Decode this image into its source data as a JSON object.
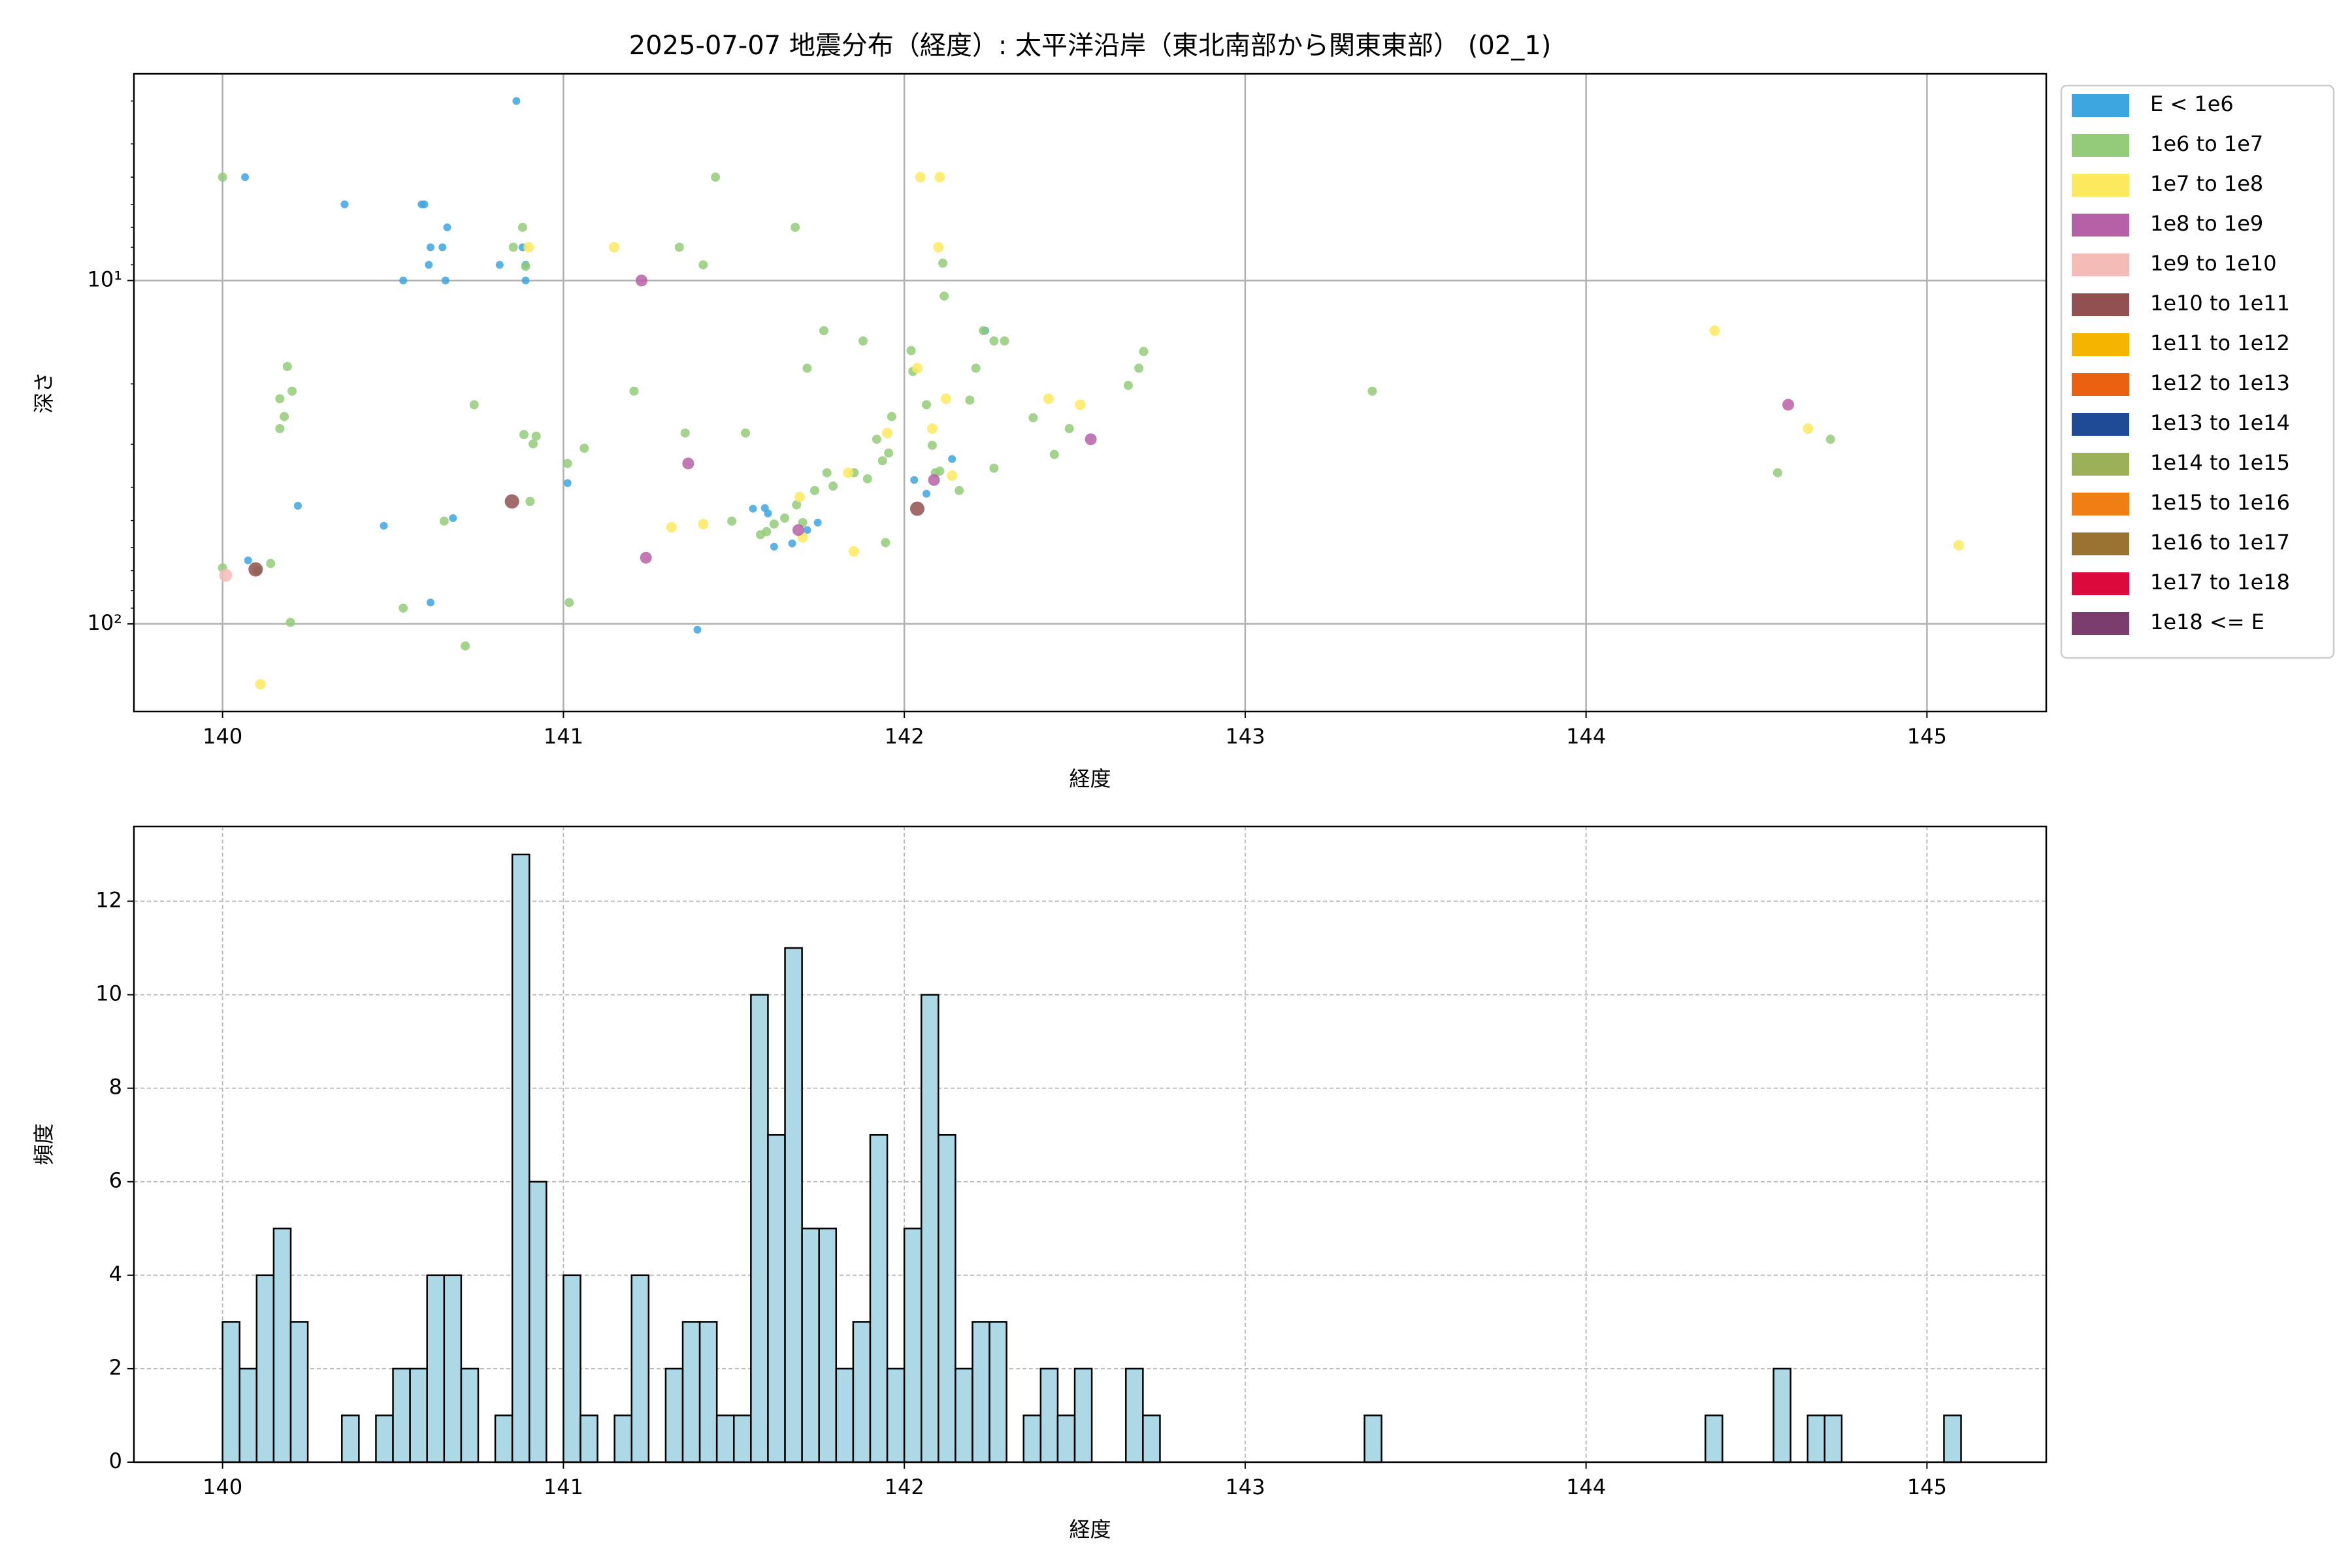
{
  "chart_data": [
    {
      "type": "scatter",
      "title": "2025-07-07 地震分布（経度）: 太平洋沿岸（東北南部から関東東部） (02_1)",
      "xlabel": "経度",
      "ylabel": "深さ",
      "xlim": [
        139.74,
        145.35
      ],
      "xticks": [
        140,
        141,
        142,
        143,
        144,
        145
      ],
      "ylim": [
        2.5,
        180
      ],
      "log_y": true,
      "y_inverted": true,
      "yticks": [
        {
          "value": 10,
          "label": "10¹"
        },
        {
          "value": 100,
          "label": "10²"
        }
      ],
      "grid": true,
      "legend": "outside upper right",
      "series": [
        {
          "name": "E < 1e6",
          "color": "#3da5e0",
          "x": [
            140.862,
            140.066,
            140.358,
            140.584,
            140.592,
            140.659,
            140.61,
            140.645,
            140.605,
            140.813,
            140.88,
            140.889,
            140.889,
            140.53,
            140.654,
            141.012,
            140.676,
            140.473,
            140.075,
            140.221,
            140.61,
            141.393,
            141.556,
            141.591,
            141.6,
            141.618,
            141.671,
            141.715,
            141.746,
            142.029,
            142.065,
            142.14,
            142.237
          ],
          "values": [
            3.0,
            5.0,
            6.0,
            6.0,
            6.0,
            7.0,
            8.0,
            8.0,
            9.0,
            9.0,
            8.0,
            9.0,
            10.0,
            10.0,
            10.0,
            38.9,
            49.2,
            51.8,
            65.3,
            45.3,
            86.7,
            104,
            46.2,
            46,
            47.7,
            59.6,
            58.3,
            53.3,
            50.7,
            38.1,
            41.8,
            33.1,
            14.0
          ]
        },
        {
          "name": "1e6 to 1e7",
          "color": "#93cb78",
          "x": [
            140.0,
            140.0,
            140.19,
            140.204,
            140.168,
            140.181,
            140.168,
            140.141,
            140.199,
            140.53,
            140.712,
            140.65,
            140.738,
            140.853,
            140.88,
            140.889,
            140.884,
            140.911,
            140.92,
            140.902,
            141.012,
            141.061,
            141.017,
            141.207,
            141.34,
            141.41,
            141.446,
            141.357,
            141.534,
            141.494,
            141.68,
            141.715,
            141.764,
            141.879,
            141.773,
            141.791,
            141.737,
            141.853,
            141.892,
            141.919,
            141.936,
            141.954,
            141.963,
            141.945,
            142.02,
            142.025,
            142.065,
            142.082,
            142.091,
            142.104,
            142.113,
            142.117,
            142.161,
            142.192,
            142.21,
            142.232,
            142.263,
            142.294,
            142.263,
            142.378,
            142.44,
            142.484,
            142.657,
            142.688,
            142.702,
            143.373,
            144.562,
            144.717,
            141.596,
            141.618,
            141.649,
            141.684,
            141.702,
            141.578,
            140.102
          ],
          "values": [
            5.0,
            68.7,
            17.8,
            21.0,
            22.1,
            24.9,
            27.0,
            66.7,
            99,
            90,
            116,
            50.2,
            23.0,
            8.0,
            7.0,
            9.1,
            28.1,
            29.9,
            28.4,
            44.0,
            34.1,
            30.8,
            86.7,
            21.0,
            8.0,
            9.0,
            5.0,
            27.8,
            27.8,
            50.2,
            7.0,
            18.0,
            14.0,
            15.0,
            36.3,
            39.7,
            40.9,
            36.3,
            37.8,
            29.0,
            33.5,
            31.8,
            24.9,
            58,
            16.0,
            18.4,
            23.0,
            30.2,
            36.3,
            35.9,
            8.9,
            11.1,
            40.9,
            22.3,
            18.0,
            14.0,
            15.0,
            15.0,
            35.2,
            25.1,
            32.1,
            27.0,
            20.2,
            18.0,
            16.1,
            21.0,
            36.3,
            29.0,
            53.9,
            51.2,
            49.2,
            45.0,
            50.7,
            55.0,
            70
          ]
        },
        {
          "name": "1e7 to 1e8",
          "color": "#fde95e",
          "x": [
            140.111,
            140.898,
            141.149,
            141.317,
            141.41,
            141.693,
            141.702,
            141.852,
            141.835,
            141.95,
            142.047,
            142.104,
            142.038,
            142.082,
            142.1,
            142.122,
            142.14,
            142.423,
            142.516,
            144.377,
            144.651,
            145.093
          ],
          "values": [
            150,
            8.0,
            8.0,
            52.3,
            51.2,
            42.7,
            56.0,
            61.5,
            36.3,
            27.8,
            5.0,
            5.0,
            18.0,
            27.0,
            8.0,
            22.1,
            37.0,
            22.1,
            23.0,
            14.0,
            27.0,
            59.0
          ]
        },
        {
          "name": "1e8 to 1e9",
          "color": "#b660a8",
          "x": [
            141.229,
            141.366,
            141.242,
            141.689,
            142.087,
            142.547,
            144.593
          ],
          "values": [
            10.0,
            34.1,
            64.2,
            53.3,
            38.1,
            29.0,
            23.0
          ]
        },
        {
          "name": "1e9 to 1e10",
          "color": "#f3bcb7",
          "x": [
            140.009
          ],
          "values": [
            72.2
          ]
        },
        {
          "name": "1e10 to 1e11",
          "color": "#935050",
          "x": [
            140.097,
            140.849,
            142.038
          ],
          "values": [
            69.4,
            44.0,
            46.2
          ]
        },
        {
          "name": "1e11 to 1e12",
          "color": "#f5b400",
          "x": [],
          "values": []
        },
        {
          "name": "1e12 to 1e13",
          "color": "#eb6112",
          "x": [],
          "values": []
        },
        {
          "name": "1e13 to 1e14",
          "color": "#1f4b96",
          "x": [],
          "values": []
        },
        {
          "name": "1e14 to 1e15",
          "color": "#9cb057",
          "x": [],
          "values": []
        },
        {
          "name": "1e15 to 1e16",
          "color": "#f07e14",
          "x": [],
          "values": []
        },
        {
          "name": "1e16 to 1e17",
          "color": "#9a7231",
          "x": [],
          "values": []
        },
        {
          "name": "1e17 to 1e18",
          "color": "#dc0a3c",
          "x": [],
          "values": []
        },
        {
          "name": "1e18 <= E",
          "color": "#7a3d6e",
          "x": [],
          "values": []
        }
      ]
    },
    {
      "type": "histogram",
      "xlabel": "経度",
      "ylabel": "頻度",
      "xlim": [
        139.74,
        145.35
      ],
      "xticks": [
        140,
        141,
        142,
        143,
        144,
        145
      ],
      "ylim": [
        0,
        13.6
      ],
      "yticks": [
        0,
        2,
        4,
        6,
        8,
        10,
        12
      ],
      "grid": true,
      "grid_style": "dashed",
      "color": "#add8e6",
      "edgecolor": "#000000",
      "bins": [
        140.0,
        140.05,
        140.1,
        140.15,
        140.2,
        140.25,
        140.3,
        140.35,
        140.4,
        140.45,
        140.5,
        140.55,
        140.6,
        140.65,
        140.7,
        140.75,
        140.8,
        140.85,
        140.9,
        140.95,
        141.0,
        141.05,
        141.1,
        141.15,
        141.2,
        141.25,
        141.3,
        141.35,
        141.4,
        141.45,
        141.5,
        141.55,
        141.6,
        141.65,
        141.7,
        141.75,
        141.8,
        141.85,
        141.9,
        141.95,
        142.0,
        142.05,
        142.1,
        142.15,
        142.2,
        142.25,
        142.3,
        142.35,
        142.4,
        142.45,
        142.5,
        142.55,
        142.6,
        142.65,
        142.7,
        142.75,
        142.8,
        142.85,
        142.9,
        142.95,
        143.0,
        143.05,
        143.1,
        143.15,
        143.2,
        143.25,
        143.3,
        143.35,
        143.4,
        143.45,
        143.5,
        143.55,
        143.6,
        143.65,
        143.7,
        143.75,
        143.8,
        143.85,
        143.9,
        143.95,
        144.0,
        144.05,
        144.1,
        144.15,
        144.2,
        144.25,
        144.3,
        144.35,
        144.4,
        144.45,
        144.5,
        144.55,
        144.6,
        144.65,
        144.7,
        144.75,
        144.8,
        144.85,
        144.9,
        144.95,
        145.0,
        145.05,
        145.1
      ],
      "values": [
        3,
        2,
        4,
        5,
        3,
        0,
        0,
        1,
        0,
        1,
        2,
        2,
        4,
        4,
        2,
        0,
        1,
        13,
        6,
        0,
        4,
        1,
        0,
        1,
        4,
        0,
        2,
        3,
        3,
        1,
        1,
        10,
        7,
        11,
        5,
        5,
        2,
        3,
        7,
        2,
        5,
        10,
        7,
        2,
        3,
        3,
        0,
        1,
        2,
        1,
        2,
        0,
        0,
        2,
        1,
        0,
        0,
        0,
        0,
        0,
        0,
        0,
        0,
        0,
        0,
        0,
        0,
        1,
        0,
        0,
        0,
        0,
        0,
        0,
        0,
        0,
        0,
        0,
        0,
        0,
        0,
        0,
        0,
        0,
        0,
        0,
        0,
        1,
        0,
        0,
        0,
        2,
        0,
        1,
        1,
        0,
        0,
        0,
        0,
        0,
        0,
        1
      ]
    }
  ]
}
